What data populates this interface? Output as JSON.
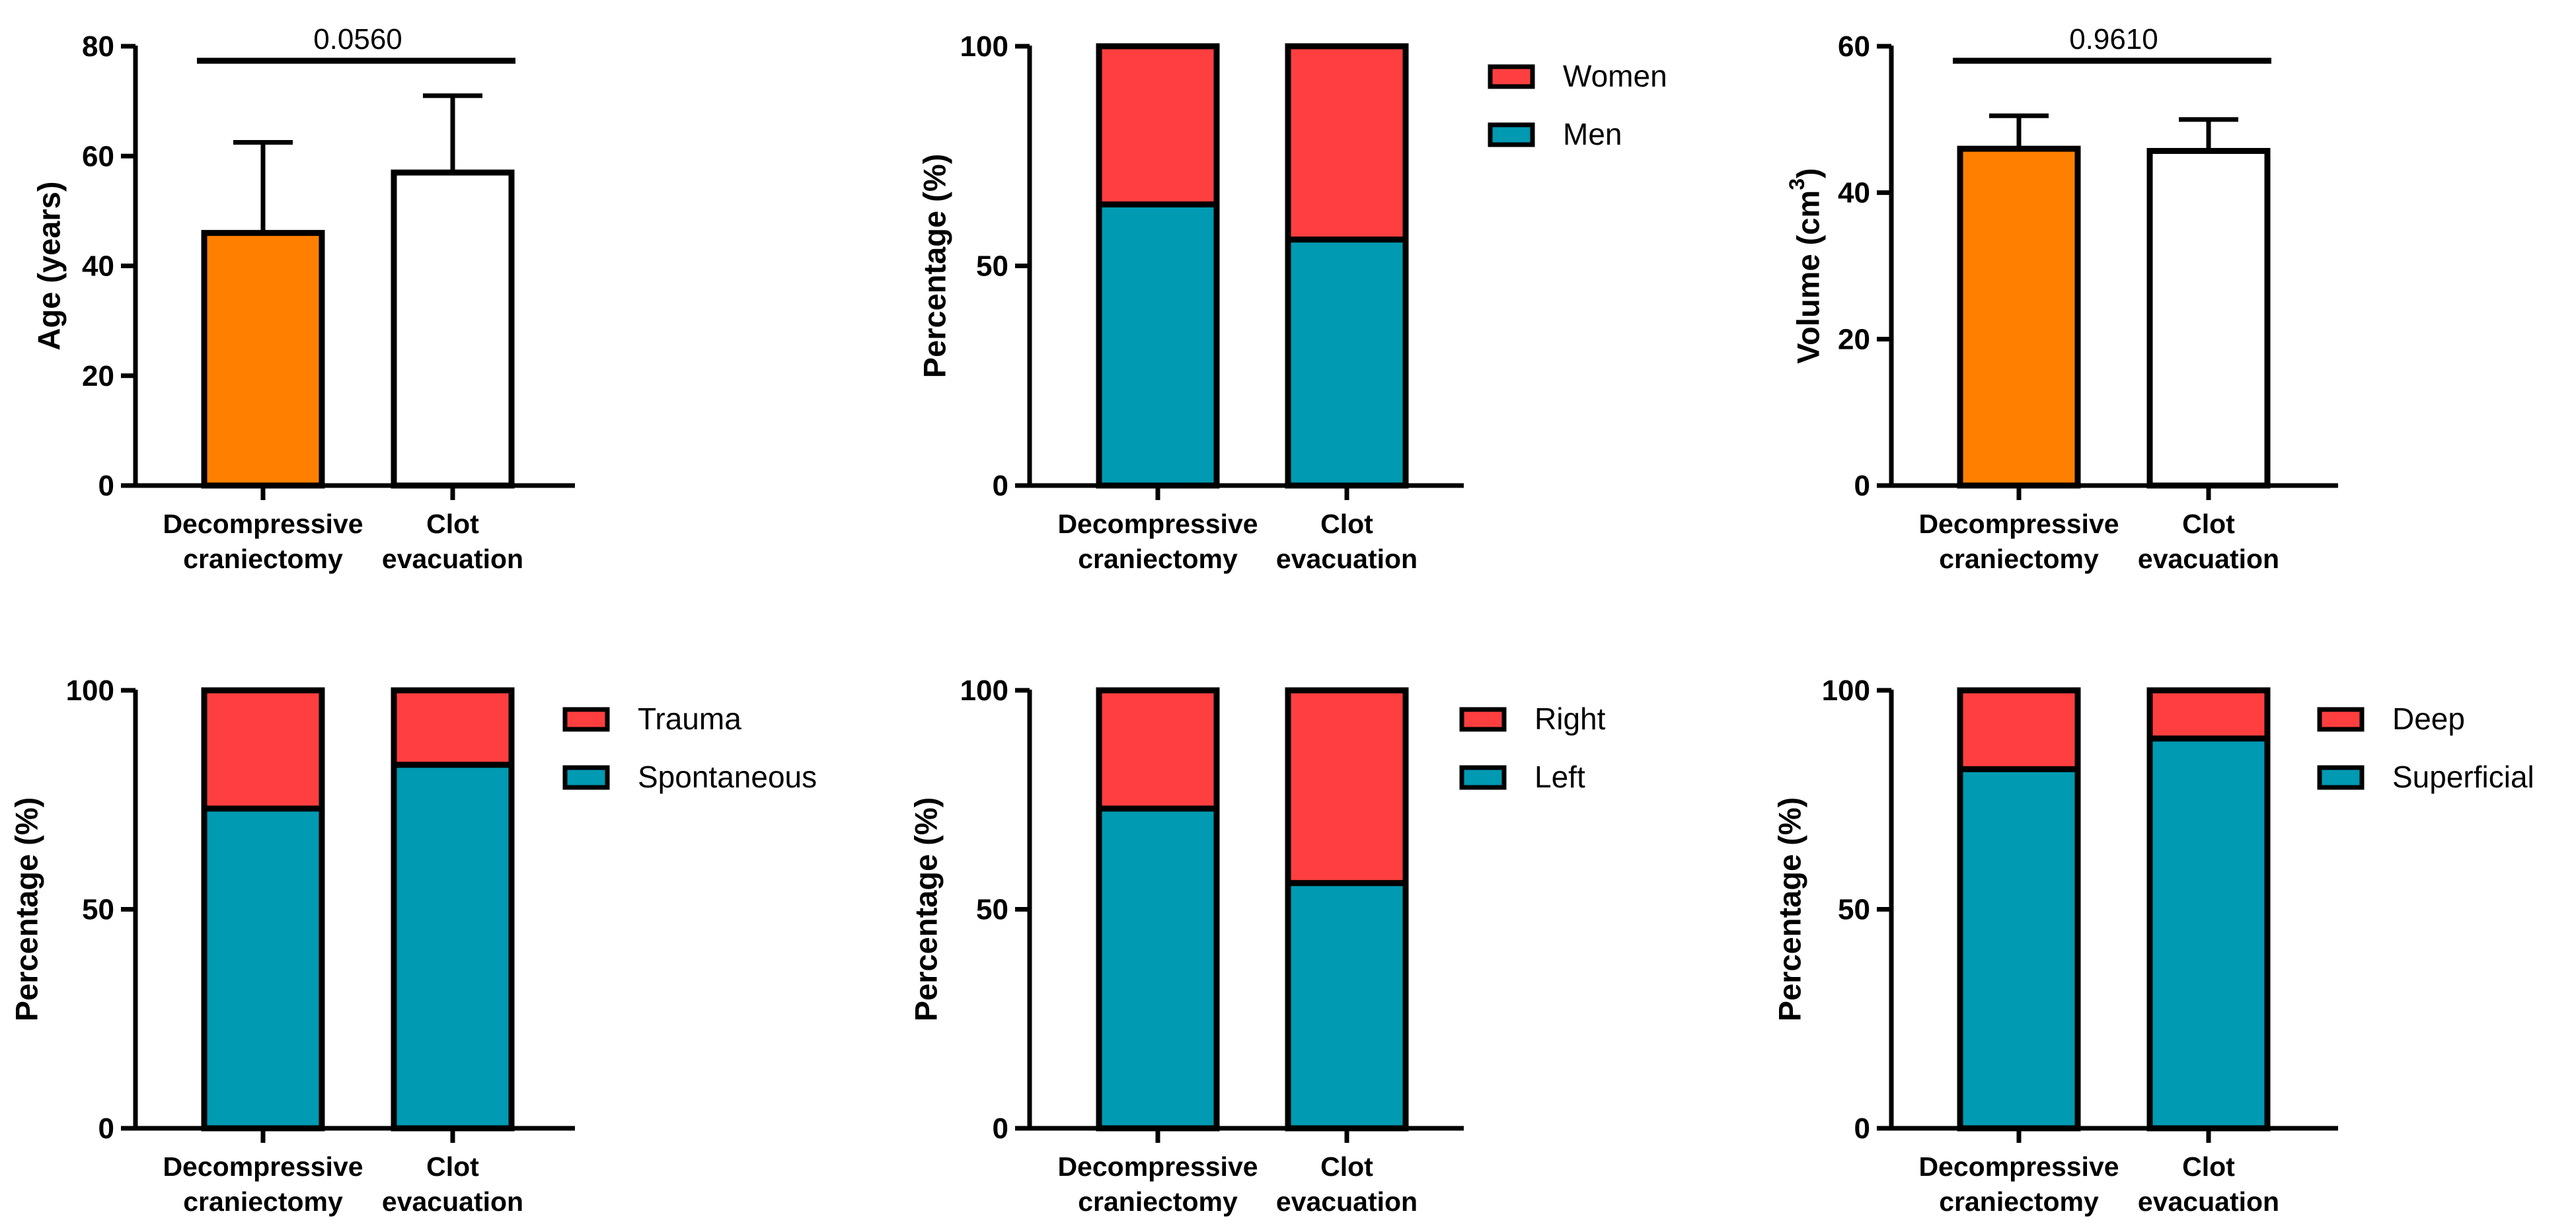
{
  "chart_data": [
    {
      "type": "bar",
      "panel": "age",
      "categories": [
        [
          "Decompressive",
          "craniectomy"
        ],
        [
          "Clot",
          "evacuation"
        ]
      ],
      "values": [
        46,
        57
      ],
      "errors": [
        16.5,
        14
      ],
      "fills": [
        "#FF8000",
        "#FFFFFF"
      ],
      "ylabel": "Age (years)",
      "ylim": [
        0,
        80
      ],
      "yticks": [
        "0",
        "20",
        "40",
        "60",
        "80"
      ],
      "pvalue": "0.0560"
    },
    {
      "type": "bar",
      "stacked": true,
      "panel": "sex",
      "categories": [
        [
          "Decompressive",
          "craniectomy"
        ],
        [
          "Clot",
          "evacuation"
        ]
      ],
      "series": [
        {
          "name": "Men",
          "values": [
            64,
            56
          ],
          "color": "#009AB2"
        },
        {
          "name": "Women",
          "values": [
            36,
            44
          ],
          "color": "#FF3F3F"
        }
      ],
      "legend": [
        "Women",
        "Men"
      ],
      "ylabel": "Percentage (%)",
      "ylim": [
        0,
        100
      ],
      "yticks": [
        "0",
        "50",
        "100"
      ]
    },
    {
      "type": "bar",
      "panel": "volume",
      "categories": [
        [
          "Decompressive",
          "craniectomy"
        ],
        [
          "Clot",
          "evacuation"
        ]
      ],
      "values": [
        46,
        45.7
      ],
      "errors": [
        4.5,
        4.3
      ],
      "fills": [
        "#FF8000",
        "#FFFFFF"
      ],
      "ylabel": "Volume (cm",
      "ylabel_sup": "3",
      "ylabel_end": ")",
      "ylim": [
        0,
        60
      ],
      "yticks": [
        "0",
        "20",
        "40",
        "60"
      ],
      "pvalue": "0.9610"
    },
    {
      "type": "bar",
      "stacked": true,
      "panel": "etiology",
      "categories": [
        [
          "Decompressive",
          "craniectomy"
        ],
        [
          "Clot",
          "evacuation"
        ]
      ],
      "series": [
        {
          "name": "Spontaneous",
          "values": [
            73,
            83
          ],
          "color": "#009AB2"
        },
        {
          "name": "Trauma",
          "values": [
            27,
            17
          ],
          "color": "#FF3F3F"
        }
      ],
      "legend": [
        "Trauma",
        "Spontaneous"
      ],
      "ylabel": "Percentage (%)",
      "ylim": [
        0,
        100
      ],
      "yticks": [
        "0",
        "50",
        "100"
      ]
    },
    {
      "type": "bar",
      "stacked": true,
      "panel": "side",
      "categories": [
        [
          "Decompressive",
          "craniectomy"
        ],
        [
          "Clot",
          "evacuation"
        ]
      ],
      "series": [
        {
          "name": "Left",
          "values": [
            73,
            56
          ],
          "color": "#009AB2"
        },
        {
          "name": "Right",
          "values": [
            27,
            44
          ],
          "color": "#FF3F3F"
        }
      ],
      "legend": [
        "Right",
        "Left"
      ],
      "ylabel": "Percentage (%)",
      "ylim": [
        0,
        100
      ],
      "yticks": [
        "0",
        "50",
        "100"
      ]
    },
    {
      "type": "bar",
      "stacked": true,
      "panel": "location",
      "categories": [
        [
          "Decompressive",
          "craniectomy"
        ],
        [
          "Clot",
          "evacuation"
        ]
      ],
      "series": [
        {
          "name": "Superficial",
          "values": [
            82,
            89
          ],
          "color": "#009AB2"
        },
        {
          "name": "Deep",
          "values": [
            18,
            11
          ],
          "color": "#FF3F3F"
        }
      ],
      "legend": [
        "Deep",
        "Superficial"
      ],
      "ylabel": "Percentage (%)",
      "ylim": [
        0,
        100
      ],
      "yticks": [
        "0",
        "50",
        "100"
      ]
    }
  ]
}
